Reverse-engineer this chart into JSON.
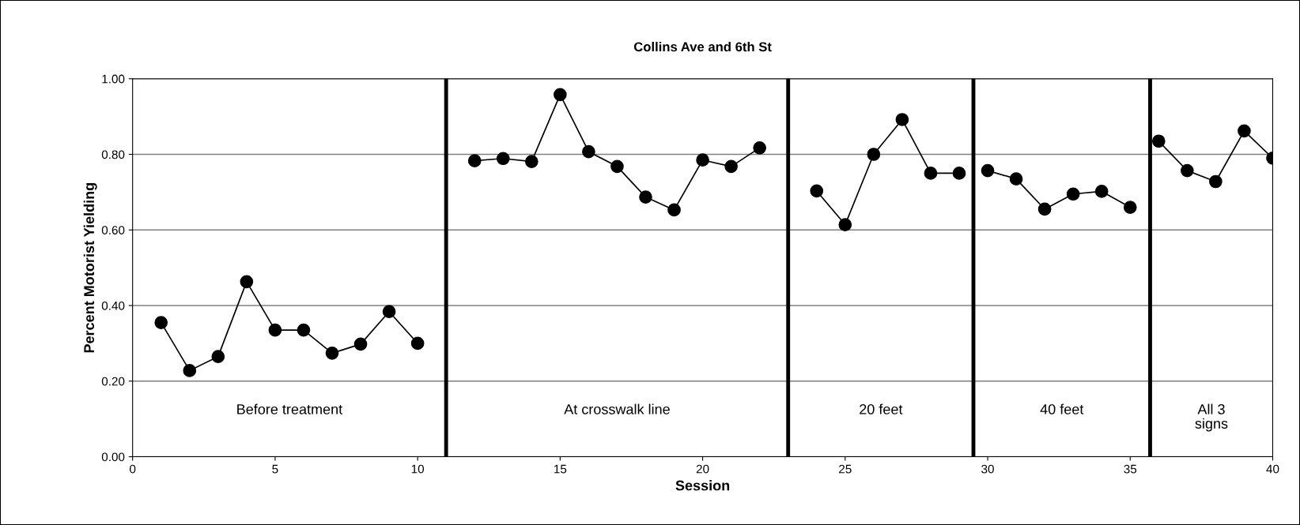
{
  "chart_data": {
    "type": "line",
    "title": "Collins Ave and 6th St",
    "xlabel": "Session",
    "ylabel": "Percent Motorist Yielding",
    "series": [
      {
        "color": "#000000",
        "x": [
          1,
          2,
          3,
          4,
          5,
          6,
          7,
          8,
          9,
          10
        ],
        "values": [
          0.355,
          0.228,
          0.265,
          0.463,
          0.335,
          0.335,
          0.274,
          0.298,
          0.384,
          0.3
        ]
      },
      {
        "color": "#000000",
        "x": [
          12,
          13,
          14,
          15,
          16,
          17,
          18,
          19,
          20,
          21,
          22
        ],
        "values": [
          0.783,
          0.789,
          0.781,
          0.958,
          0.807,
          0.768,
          0.687,
          0.653,
          0.785,
          0.768,
          0.817
        ]
      },
      {
        "color": "#000000",
        "x": [
          24,
          25,
          26,
          27,
          28,
          29
        ],
        "values": [
          0.703,
          0.614,
          0.8,
          0.892,
          0.75,
          0.75
        ]
      },
      {
        "color": "#000000",
        "x": [
          30,
          31,
          32,
          33,
          34,
          35
        ],
        "values": [
          0.757,
          0.735,
          0.655,
          0.695,
          0.702,
          0.66
        ]
      },
      {
        "color": "#000000",
        "x": [
          36,
          37,
          38,
          39,
          40
        ],
        "values": [
          0.835,
          0.757,
          0.728,
          0.862,
          0.79
        ]
      }
    ],
    "xlim": [
      0,
      40
    ],
    "xticks": [
      0,
      5,
      10,
      15,
      20,
      25,
      30,
      35,
      40
    ],
    "ylim": [
      0,
      1
    ],
    "yticks": [
      {
        "value": 0,
        "label": "0.00"
      },
      {
        "value": 0.2,
        "label": "0.20"
      },
      {
        "value": 0.4,
        "label": "0.40"
      },
      {
        "value": 0.6,
        "label": "0.60"
      },
      {
        "value": 0.8,
        "label": "0.80"
      },
      {
        "value": 1.0,
        "label": "1.00"
      }
    ],
    "grid": "y",
    "marker": "circle",
    "line_style": "solid",
    "ref_lines": [
      {
        "axis": "x",
        "value": 11,
        "color": "#000000"
      },
      {
        "axis": "x",
        "value": 23,
        "color": "#000000"
      },
      {
        "axis": "x",
        "value": 29.5,
        "color": "#000000"
      },
      {
        "axis": "x",
        "value": 35.7,
        "color": "#000000"
      }
    ],
    "annotations": [
      "Before treatment",
      "At crosswalk line",
      "20 feet",
      "40 feet",
      "All 3\nsigns"
    ]
  }
}
